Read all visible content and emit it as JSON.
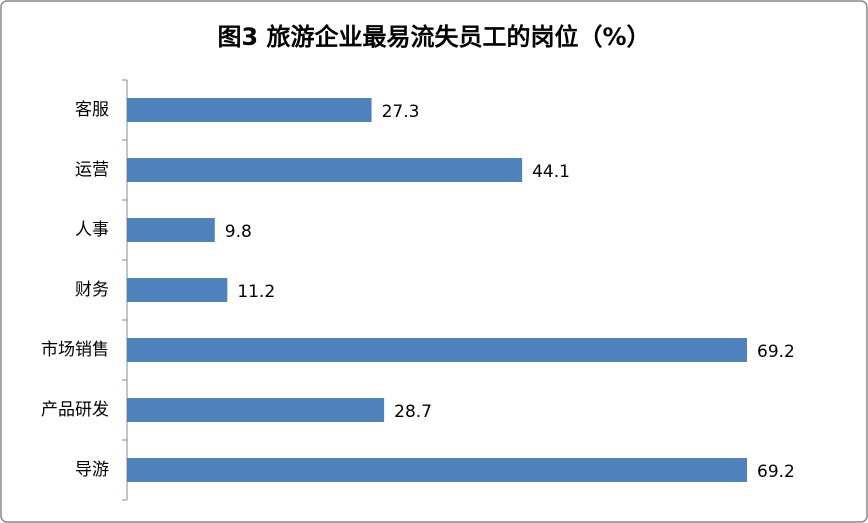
{
  "chart_data": {
    "type": "bar",
    "orientation": "horizontal",
    "title": "图3  旅游企业最易流失员工的岗位（%）",
    "categories": [
      "客服",
      "运营",
      "人事",
      "财务",
      "市场销售",
      "产品研发",
      "导游"
    ],
    "values": [
      27.3,
      44.1,
      9.8,
      11.2,
      69.2,
      28.7,
      69.2
    ],
    "color": "#4f81bd"
  }
}
